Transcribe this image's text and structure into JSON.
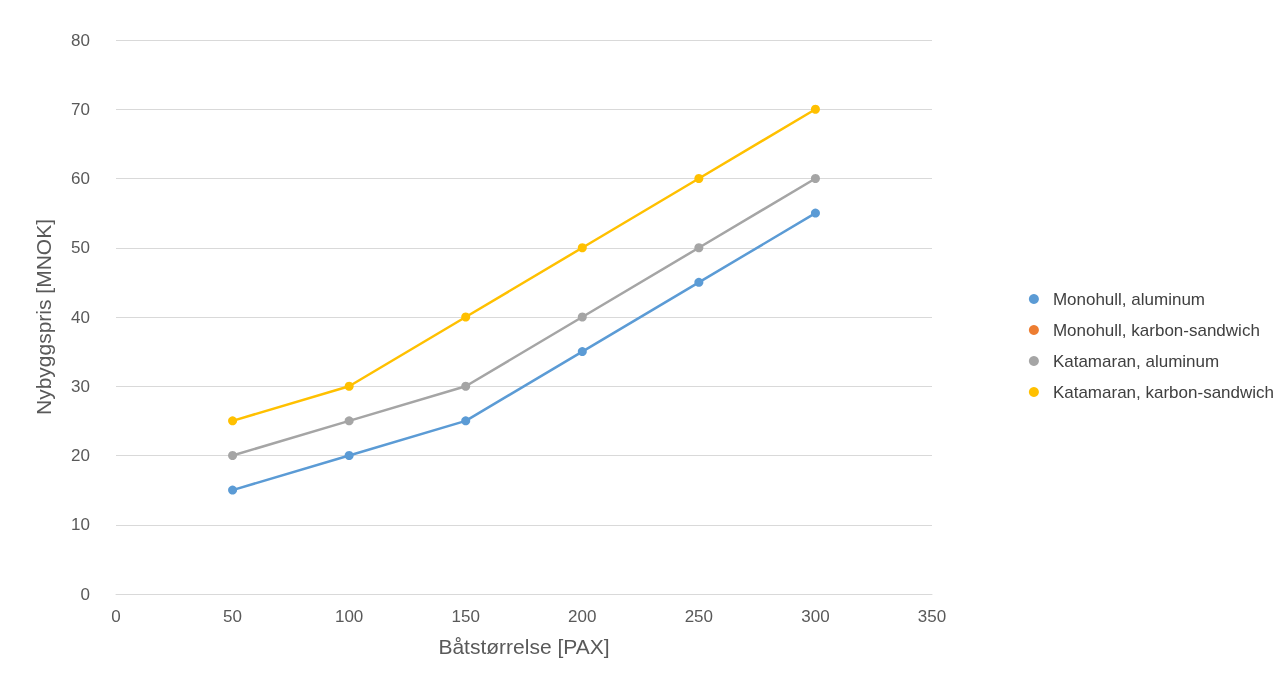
{
  "chart_data": {
    "type": "line",
    "xlabel": "Båtstørrelse [PAX]",
    "ylabel": "Nybyggspris [MNOK]",
    "x": [
      50,
      100,
      150,
      200,
      250,
      300
    ],
    "series": [
      {
        "name": "Monohull, aluminum",
        "color": "#5b9bd5",
        "values": [
          15,
          20,
          25,
          35,
          45,
          55
        ]
      },
      {
        "name": "Monohull, karbon-sandwich",
        "color": "#ed7d31",
        "values": [
          null,
          null,
          null,
          null,
          null,
          null
        ]
      },
      {
        "name": "Katamaran, aluminum",
        "color": "#a5a5a5",
        "values": [
          20,
          25,
          30,
          40,
          50,
          60
        ]
      },
      {
        "name": "Katamaran, karbon-sandwich",
        "color": "#ffc000",
        "values": [
          25,
          30,
          40,
          50,
          60,
          70
        ]
      }
    ],
    "xlim": [
      0,
      350
    ],
    "xticks": [
      0,
      50,
      100,
      150,
      200,
      250,
      300,
      350
    ],
    "ylim": [
      0,
      80
    ],
    "yticks": [
      0,
      10,
      20,
      30,
      40,
      50,
      60,
      70,
      80
    ],
    "grid": "y",
    "legend": "right",
    "marker": "circle",
    "line_style": "solid"
  }
}
